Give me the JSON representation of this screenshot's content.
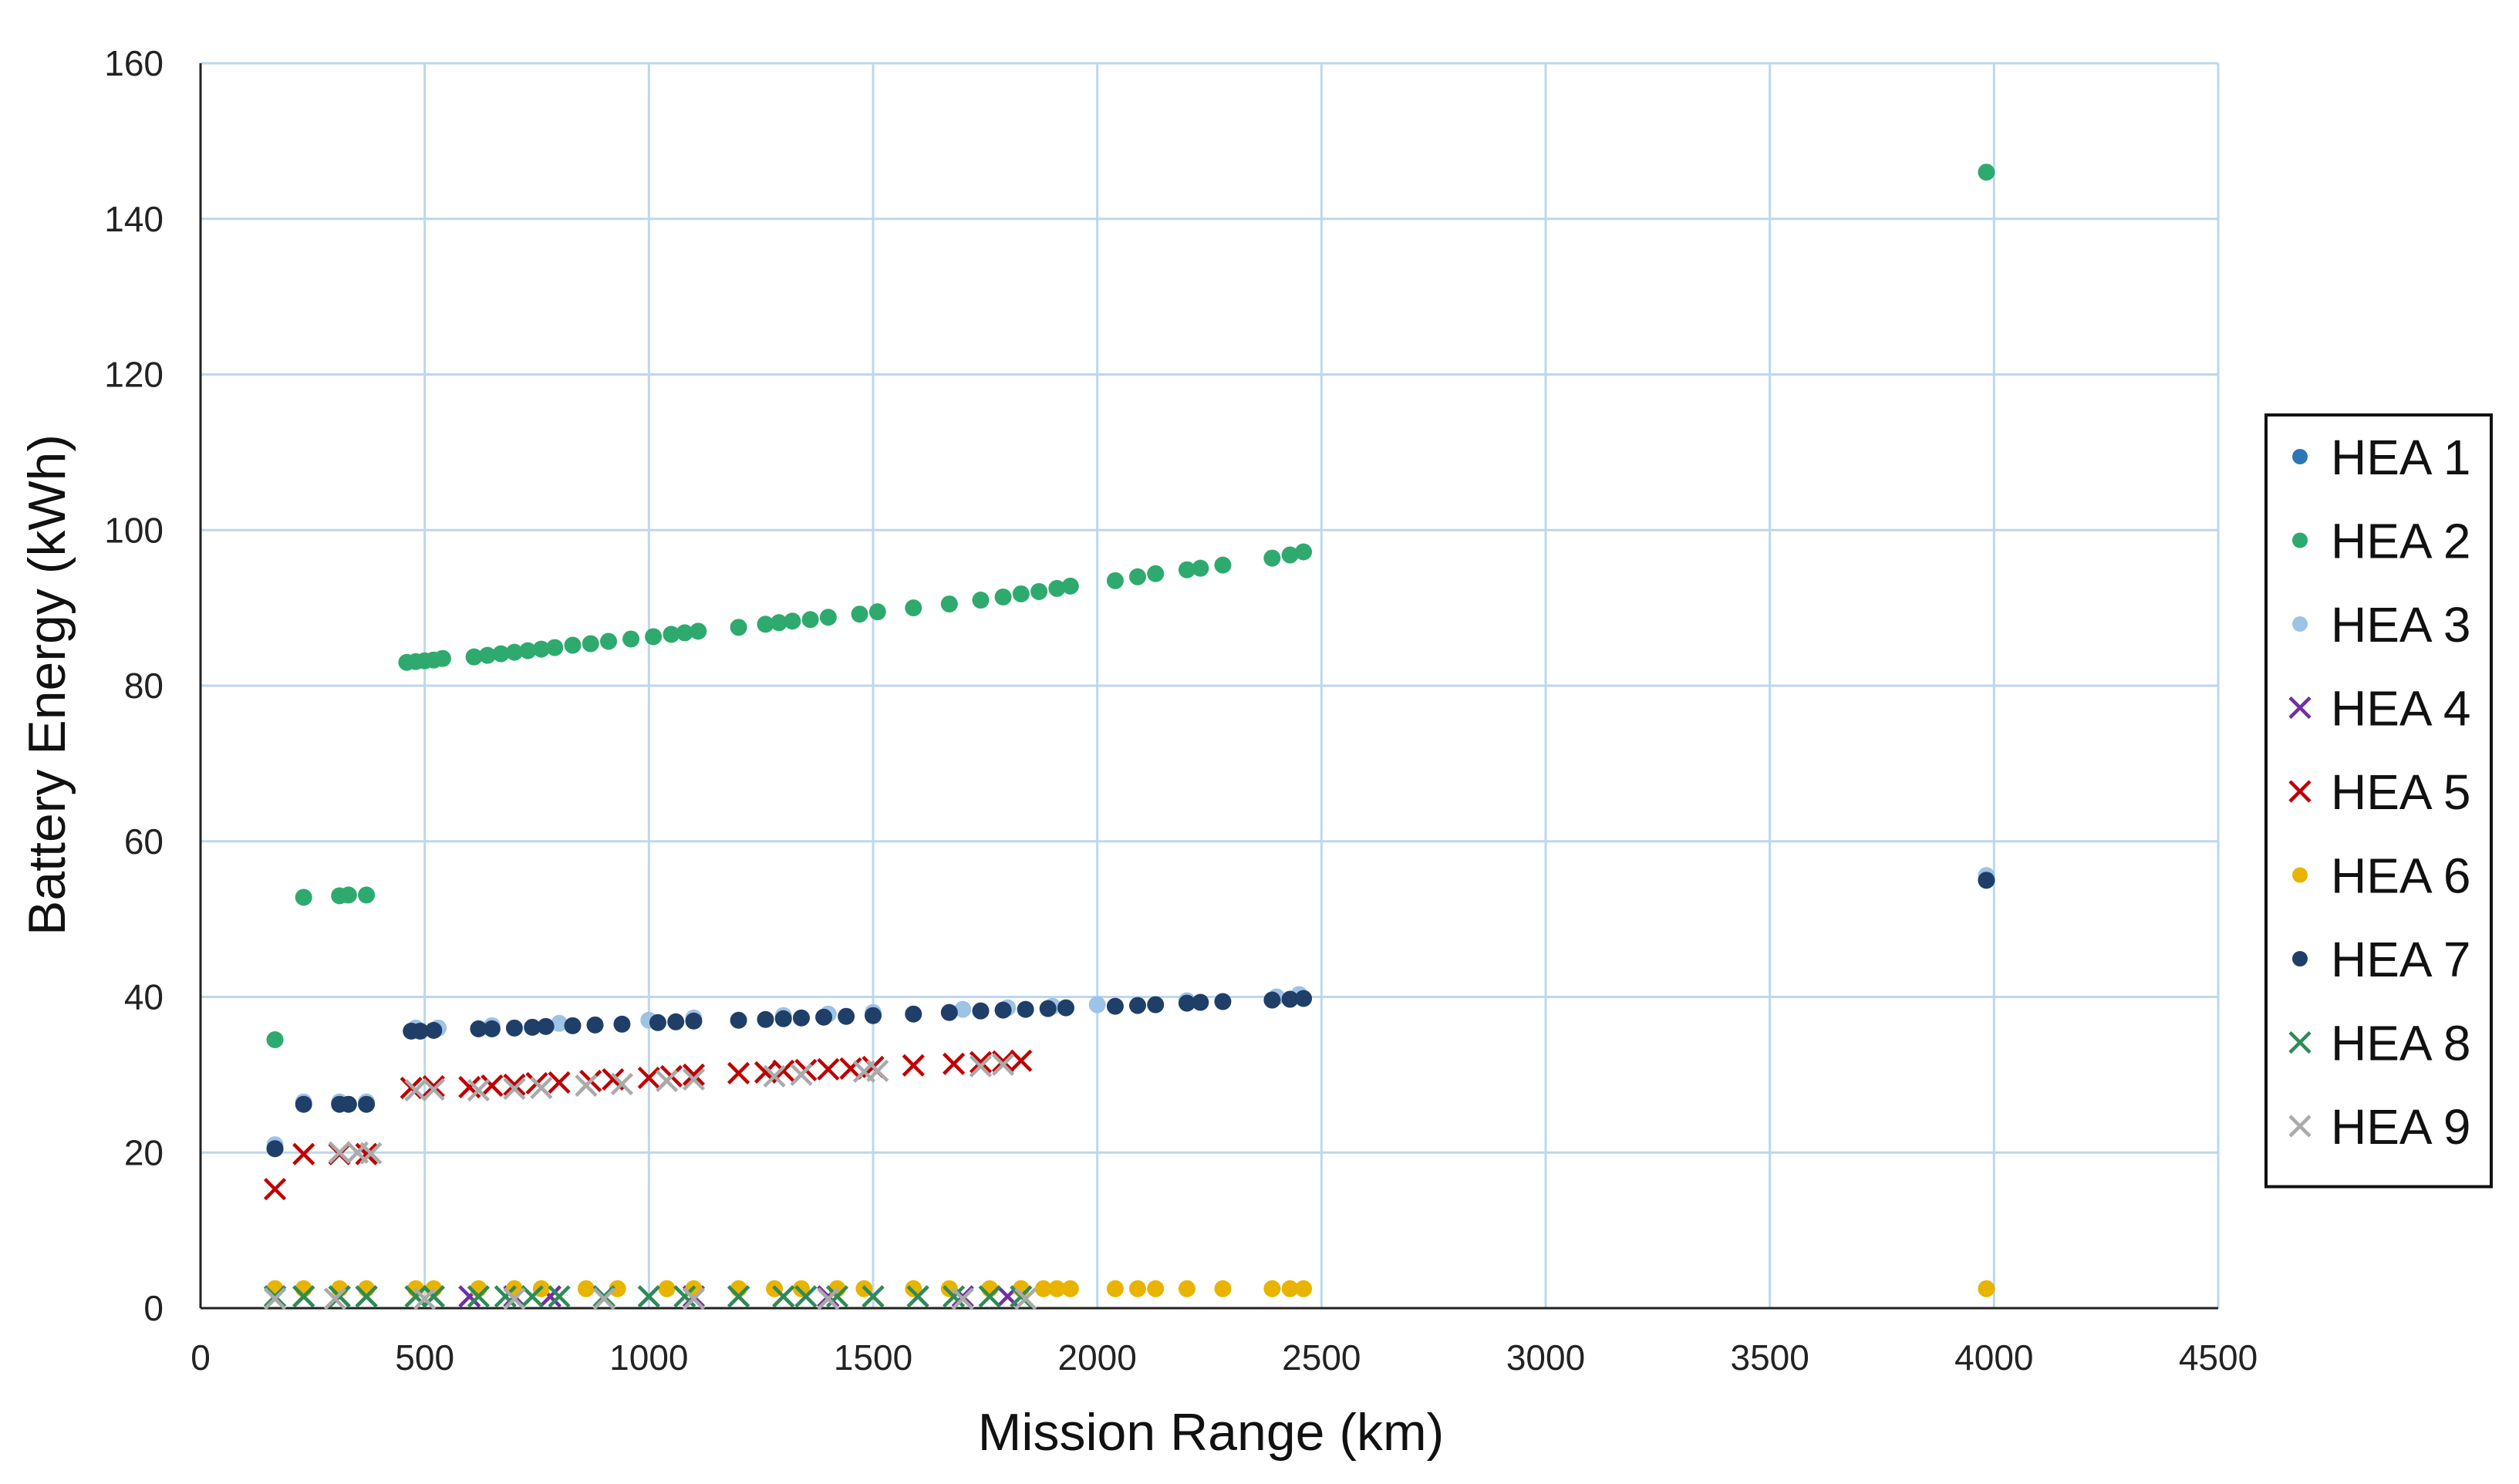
{
  "chart_data": {
    "type": "scatter",
    "title": "",
    "xlabel": "Mission Range (km)",
    "ylabel": "Battery Energy (kWh)",
    "xlim": [
      0,
      4500
    ],
    "ylim": [
      0,
      160
    ],
    "xticks": [
      0,
      500,
      1000,
      1500,
      2000,
      2500,
      3000,
      3500,
      4000,
      4500
    ],
    "yticks": [
      0,
      20,
      40,
      60,
      80,
      100,
      120,
      140,
      160
    ],
    "grid": true,
    "legend_position": "right",
    "series": [
      {
        "name": "HEA 1",
        "color": "#2E75B6",
        "marker": "circle",
        "points": [
          [
            166,
            20.5
          ],
          [
            3983,
            55.0
          ]
        ]
      },
      {
        "name": "HEA 2",
        "color": "#2EAA6E",
        "marker": "circle",
        "points": [
          [
            166,
            34.5
          ],
          [
            230,
            52.8
          ],
          [
            310,
            53.0
          ],
          [
            330,
            53.1
          ],
          [
            370,
            53.1
          ],
          [
            460,
            83.0
          ],
          [
            480,
            83.1
          ],
          [
            500,
            83.2
          ],
          [
            520,
            83.3
          ],
          [
            540,
            83.5
          ],
          [
            610,
            83.7
          ],
          [
            640,
            83.9
          ],
          [
            670,
            84.1
          ],
          [
            700,
            84.3
          ],
          [
            730,
            84.5
          ],
          [
            760,
            84.7
          ],
          [
            790,
            84.9
          ],
          [
            830,
            85.2
          ],
          [
            870,
            85.4
          ],
          [
            910,
            85.7
          ],
          [
            960,
            86.0
          ],
          [
            1010,
            86.3
          ],
          [
            1050,
            86.6
          ],
          [
            1080,
            86.8
          ],
          [
            1110,
            87.0
          ],
          [
            1200,
            87.5
          ],
          [
            1260,
            87.9
          ],
          [
            1290,
            88.1
          ],
          [
            1320,
            88.3
          ],
          [
            1360,
            88.5
          ],
          [
            1400,
            88.8
          ],
          [
            1470,
            89.2
          ],
          [
            1510,
            89.5
          ],
          [
            1590,
            90.0
          ],
          [
            1670,
            90.5
          ],
          [
            1740,
            91.0
          ],
          [
            1790,
            91.4
          ],
          [
            1830,
            91.8
          ],
          [
            1870,
            92.1
          ],
          [
            1910,
            92.5
          ],
          [
            1940,
            92.8
          ],
          [
            2040,
            93.5
          ],
          [
            2090,
            94.0
          ],
          [
            2130,
            94.4
          ],
          [
            2200,
            94.9
          ],
          [
            2230,
            95.1
          ],
          [
            2280,
            95.5
          ],
          [
            2390,
            96.4
          ],
          [
            2430,
            96.8
          ],
          [
            2460,
            97.2
          ],
          [
            3983,
            146.0
          ]
        ]
      },
      {
        "name": "HEA 3",
        "color": "#9DC3E6",
        "marker": "circle",
        "points": [
          [
            166,
            21.0
          ],
          [
            230,
            26.5
          ],
          [
            310,
            26.5
          ],
          [
            370,
            26.5
          ],
          [
            480,
            36.0
          ],
          [
            530,
            36.0
          ],
          [
            650,
            36.3
          ],
          [
            800,
            36.6
          ],
          [
            1000,
            37.0
          ],
          [
            1100,
            37.3
          ],
          [
            1300,
            37.6
          ],
          [
            1400,
            37.8
          ],
          [
            1500,
            38.0
          ],
          [
            1700,
            38.4
          ],
          [
            1800,
            38.6
          ],
          [
            1900,
            38.8
          ],
          [
            2000,
            39.0
          ],
          [
            2200,
            39.5
          ],
          [
            2400,
            40.0
          ],
          [
            2450,
            40.3
          ],
          [
            3983,
            55.6
          ]
        ]
      },
      {
        "name": "HEA 4",
        "color": "#7030A0",
        "marker": "x",
        "points": [
          [
            166,
            1.5
          ],
          [
            230,
            1.5
          ],
          [
            310,
            1.5
          ],
          [
            370,
            1.5
          ],
          [
            480,
            1.5
          ],
          [
            520,
            1.5
          ],
          [
            600,
            1.5
          ],
          [
            700,
            1.5
          ],
          [
            780,
            1.5
          ],
          [
            900,
            1.5
          ],
          [
            1000,
            1.5
          ],
          [
            1100,
            1.5
          ],
          [
            1200,
            1.5
          ],
          [
            1300,
            1.5
          ],
          [
            1400,
            1.5
          ],
          [
            1500,
            1.5
          ],
          [
            1600,
            1.5
          ],
          [
            1700,
            1.5
          ],
          [
            1800,
            1.5
          ]
        ]
      },
      {
        "name": "HEA 5",
        "color": "#C00000",
        "marker": "x",
        "points": [
          [
            166,
            15.3
          ],
          [
            230,
            19.8
          ],
          [
            310,
            19.8
          ],
          [
            370,
            19.8
          ],
          [
            470,
            28.3
          ],
          [
            520,
            28.5
          ],
          [
            600,
            28.4
          ],
          [
            650,
            28.6
          ],
          [
            700,
            28.7
          ],
          [
            750,
            28.9
          ],
          [
            800,
            29.0
          ],
          [
            870,
            29.2
          ],
          [
            920,
            29.4
          ],
          [
            1000,
            29.6
          ],
          [
            1050,
            29.8
          ],
          [
            1100,
            30.0
          ],
          [
            1200,
            30.2
          ],
          [
            1260,
            30.3
          ],
          [
            1300,
            30.5
          ],
          [
            1350,
            30.6
          ],
          [
            1400,
            30.7
          ],
          [
            1450,
            30.8
          ],
          [
            1500,
            31.0
          ],
          [
            1590,
            31.2
          ],
          [
            1680,
            31.4
          ],
          [
            1740,
            31.6
          ],
          [
            1790,
            31.7
          ],
          [
            1830,
            31.8
          ]
        ]
      },
      {
        "name": "HEA 6",
        "color": "#E8B400",
        "marker": "circle",
        "points": [
          [
            166,
            2.5
          ],
          [
            230,
            2.5
          ],
          [
            310,
            2.5
          ],
          [
            370,
            2.5
          ],
          [
            480,
            2.5
          ],
          [
            520,
            2.5
          ],
          [
            620,
            2.5
          ],
          [
            700,
            2.5
          ],
          [
            760,
            2.5
          ],
          [
            860,
            2.5
          ],
          [
            930,
            2.5
          ],
          [
            1040,
            2.5
          ],
          [
            1100,
            2.5
          ],
          [
            1200,
            2.5
          ],
          [
            1280,
            2.5
          ],
          [
            1340,
            2.5
          ],
          [
            1420,
            2.5
          ],
          [
            1480,
            2.5
          ],
          [
            1590,
            2.5
          ],
          [
            1670,
            2.5
          ],
          [
            1760,
            2.5
          ],
          [
            1830,
            2.5
          ],
          [
            1880,
            2.5
          ],
          [
            1910,
            2.5
          ],
          [
            1940,
            2.5
          ],
          [
            2040,
            2.5
          ],
          [
            2090,
            2.5
          ],
          [
            2130,
            2.5
          ],
          [
            2200,
            2.5
          ],
          [
            2280,
            2.5
          ],
          [
            2390,
            2.5
          ],
          [
            2430,
            2.5
          ],
          [
            2460,
            2.5
          ],
          [
            3983,
            2.5
          ]
        ]
      },
      {
        "name": "HEA 7",
        "color": "#1F3F68",
        "marker": "circle",
        "points": [
          [
            166,
            20.5
          ],
          [
            230,
            26.2
          ],
          [
            310,
            26.2
          ],
          [
            330,
            26.2
          ],
          [
            370,
            26.2
          ],
          [
            470,
            35.6
          ],
          [
            490,
            35.6
          ],
          [
            520,
            35.7
          ],
          [
            620,
            35.9
          ],
          [
            650,
            35.9
          ],
          [
            700,
            36.0
          ],
          [
            740,
            36.1
          ],
          [
            770,
            36.2
          ],
          [
            830,
            36.3
          ],
          [
            880,
            36.4
          ],
          [
            940,
            36.5
          ],
          [
            1020,
            36.7
          ],
          [
            1060,
            36.8
          ],
          [
            1100,
            36.9
          ],
          [
            1200,
            37.0
          ],
          [
            1260,
            37.1
          ],
          [
            1300,
            37.2
          ],
          [
            1340,
            37.3
          ],
          [
            1390,
            37.4
          ],
          [
            1440,
            37.5
          ],
          [
            1500,
            37.6
          ],
          [
            1590,
            37.8
          ],
          [
            1670,
            38.0
          ],
          [
            1740,
            38.2
          ],
          [
            1790,
            38.3
          ],
          [
            1840,
            38.4
          ],
          [
            1890,
            38.5
          ],
          [
            1930,
            38.6
          ],
          [
            2040,
            38.8
          ],
          [
            2090,
            38.9
          ],
          [
            2130,
            39.0
          ],
          [
            2200,
            39.2
          ],
          [
            2230,
            39.3
          ],
          [
            2280,
            39.4
          ],
          [
            2390,
            39.6
          ],
          [
            2430,
            39.7
          ],
          [
            2460,
            39.8
          ],
          [
            3983,
            55.0
          ]
        ]
      },
      {
        "name": "HEA 8",
        "color": "#2E8B57",
        "marker": "x",
        "points": [
          [
            166,
            1.5
          ],
          [
            230,
            1.5
          ],
          [
            310,
            1.5
          ],
          [
            370,
            1.5
          ],
          [
            480,
            1.5
          ],
          [
            520,
            1.5
          ],
          [
            620,
            1.5
          ],
          [
            680,
            1.5
          ],
          [
            740,
            1.5
          ],
          [
            800,
            1.5
          ],
          [
            900,
            1.5
          ],
          [
            1000,
            1.5
          ],
          [
            1080,
            1.5
          ],
          [
            1200,
            1.5
          ],
          [
            1300,
            1.5
          ],
          [
            1350,
            1.5
          ],
          [
            1420,
            1.5
          ],
          [
            1500,
            1.5
          ],
          [
            1600,
            1.5
          ],
          [
            1680,
            1.5
          ],
          [
            1760,
            1.5
          ],
          [
            1830,
            1.5
          ]
        ]
      },
      {
        "name": "HEA 9",
        "color": "#AAAAAA",
        "marker": "x",
        "points": [
          [
            310,
            20.0
          ],
          [
            350,
            20.0
          ],
          [
            380,
            19.9
          ],
          [
            480,
            28.0
          ],
          [
            520,
            28.1
          ],
          [
            620,
            28.0
          ],
          [
            700,
            28.2
          ],
          [
            760,
            28.3
          ],
          [
            860,
            28.6
          ],
          [
            940,
            28.8
          ],
          [
            1040,
            29.2
          ],
          [
            1100,
            29.4
          ],
          [
            1280,
            29.8
          ],
          [
            1340,
            30.0
          ],
          [
            1480,
            30.4
          ],
          [
            1510,
            30.5
          ],
          [
            1740,
            31.1
          ],
          [
            1790,
            31.3
          ],
          [
            166,
            1.2
          ],
          [
            300,
            1.2
          ],
          [
            500,
            1.2
          ],
          [
            700,
            1.2
          ],
          [
            900,
            1.2
          ],
          [
            1100,
            1.2
          ],
          [
            1400,
            1.2
          ],
          [
            1700,
            1.2
          ],
          [
            1840,
            1.2
          ]
        ]
      }
    ]
  }
}
